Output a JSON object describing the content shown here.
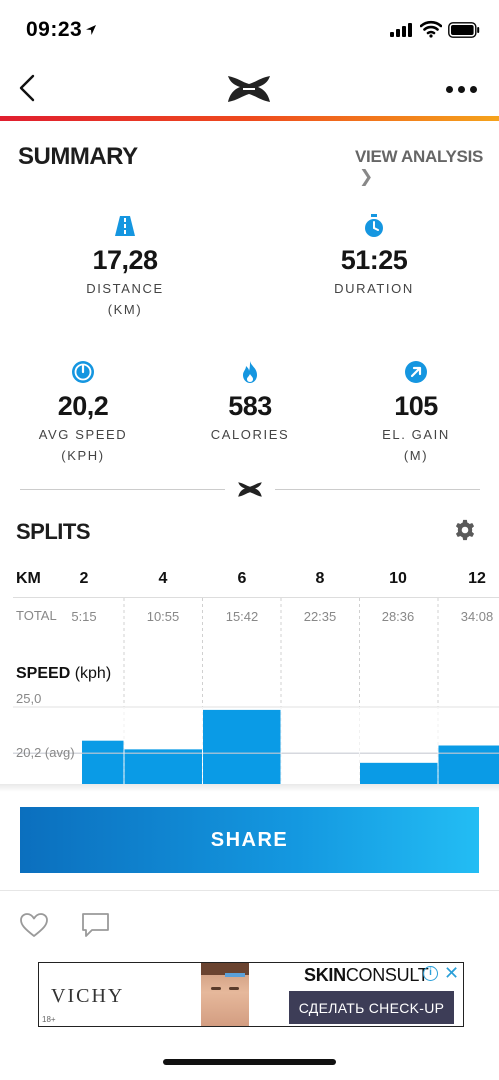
{
  "status_bar": {
    "time": "09:23",
    "signal_icon": "cellular-signal-icon",
    "wifi_icon": "wifi-icon",
    "battery_icon": "battery-icon"
  },
  "nav": {
    "back_icon": "chevron-left-icon",
    "logo_icon": "under-armour-logo",
    "more_icon": "more-horizontal-icon"
  },
  "summary": {
    "title": "SUMMARY",
    "view_analysis": "VIEW ANALYSIS",
    "stats": {
      "distance": {
        "value": "17,28",
        "label": "DISTANCE",
        "unit": "(KM)",
        "icon": "road-icon"
      },
      "duration": {
        "value": "51:25",
        "label": "DURATION",
        "unit": "",
        "icon": "stopwatch-icon"
      },
      "avg_speed": {
        "value": "20,2",
        "label": "AVG SPEED",
        "unit": "(KPH)",
        "icon": "speedometer-icon"
      },
      "calories": {
        "value": "583",
        "label": "CALORIES",
        "unit": "",
        "icon": "flame-icon"
      },
      "el_gain": {
        "value": "105",
        "label": "EL. GAIN",
        "unit": "(M)",
        "icon": "arrow-up-right-icon"
      }
    }
  },
  "splits": {
    "title": "SPLITS",
    "settings_icon": "gear-icon",
    "km_label": "KM",
    "km_markers": [
      "2",
      "4",
      "6",
      "8",
      "10",
      "12"
    ],
    "total_label": "TOTAL",
    "totals": [
      "5:15",
      "10:55",
      "15:42",
      "22:35",
      "28:36",
      "34:08"
    ]
  },
  "speed_chart": {
    "title": "SPEED",
    "unit": "(kph)",
    "max_label": "25,0",
    "avg_label": "20,2 (avg)",
    "accent": "#0a9be6"
  },
  "chart_data": {
    "type": "bar",
    "categories": [
      "2",
      "4",
      "6",
      "8",
      "10",
      "12"
    ],
    "values": [
      21.5,
      20.6,
      24.7,
      null,
      19.2,
      21.0
    ],
    "avg": 20.2,
    "ylabel": "SPEED (kph)",
    "ylim": [
      17.0,
      25.0
    ],
    "grid": true
  },
  "share": {
    "label": "SHARE"
  },
  "social": {
    "like_icon": "heart-icon",
    "comment_icon": "comment-icon"
  },
  "ad": {
    "brand": "VICHY",
    "age": "18+",
    "title_bold": "SKIN",
    "title_rest": "CONSULT",
    "info_icon": "info-icon",
    "info_glyph": "i",
    "close_icon": "close-icon",
    "close_glyph": "✕",
    "cta": "СДЕЛАТЬ CHECK-UP"
  }
}
